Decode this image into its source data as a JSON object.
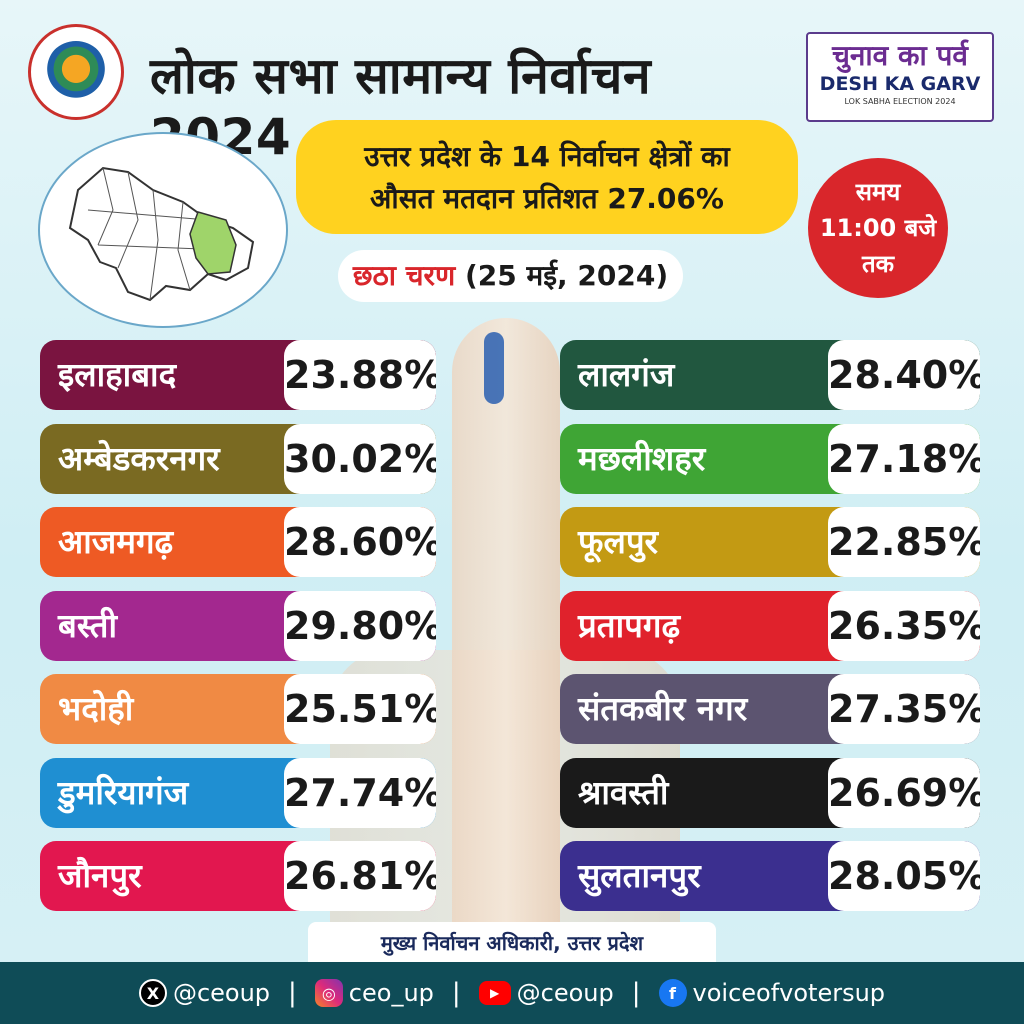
{
  "header": {
    "title": "लोक सभा सामान्य निर्वाचन 2024",
    "brand_hi": "चुनाव का पर्व",
    "brand_en": "DESH KA GARV",
    "brand_sub": "LOK SABHA ELECTION 2024"
  },
  "summary": {
    "line1": "उत्तर प्रदेश के 14 निर्वाचन क्षेत्रों का",
    "line2": "औसत मतदान प्रतिशत 27.06%",
    "time_line1": "समय",
    "time_line2": "11:00 बजे",
    "time_line3": "तक",
    "phase_label": "छठा चरण",
    "phase_date": "(25 मई, 2024)"
  },
  "left_rows": [
    {
      "name": "इलाहाबाद",
      "value": "23.88%",
      "color": "#7a1440"
    },
    {
      "name": "अम्बेडकरनगर",
      "value": "30.02%",
      "color": "#7a6a22"
    },
    {
      "name": "आजमगढ़",
      "value": "28.60%",
      "color": "#ee5a24"
    },
    {
      "name": "बस्ती",
      "value": "29.80%",
      "color": "#a3288f"
    },
    {
      "name": "भदोही",
      "value": "25.51%",
      "color": "#f08a44"
    },
    {
      "name": "डुमरियागंज",
      "value": "27.74%",
      "color": "#1f8fd2"
    },
    {
      "name": "जौनपुर",
      "value": "26.81%",
      "color": "#e2174f"
    }
  ],
  "right_rows": [
    {
      "name": "लालगंज",
      "value": "28.40%",
      "color": "#21573f"
    },
    {
      "name": "मछलीशहर",
      "value": "27.18%",
      "color": "#3fa535"
    },
    {
      "name": "फूलपुर",
      "value": "22.85%",
      "color": "#c39a13"
    },
    {
      "name": "प्रतापगढ़",
      "value": "26.35%",
      "color": "#e0222c"
    },
    {
      "name": "संतकबीर नगर",
      "value": "27.35%",
      "color": "#5c5470"
    },
    {
      "name": "श्रावस्ती",
      "value": "26.69%",
      "color": "#1a1a1a"
    },
    {
      "name": "सुलतानपुर",
      "value": "28.05%",
      "color": "#3b2f8f"
    }
  ],
  "footer": {
    "authority": "मुख्य निर्वाचन अधिकारी, उत्तर प्रदेश",
    "twitter": "@ceoup",
    "instagram": "ceo_up",
    "youtube": "@ceoup",
    "facebook": "voiceofvotersup",
    "separator": "|"
  },
  "icons": {
    "twitter": "x-icon",
    "instagram": "instagram-icon",
    "youtube": "youtube-icon",
    "facebook": "facebook-icon"
  }
}
